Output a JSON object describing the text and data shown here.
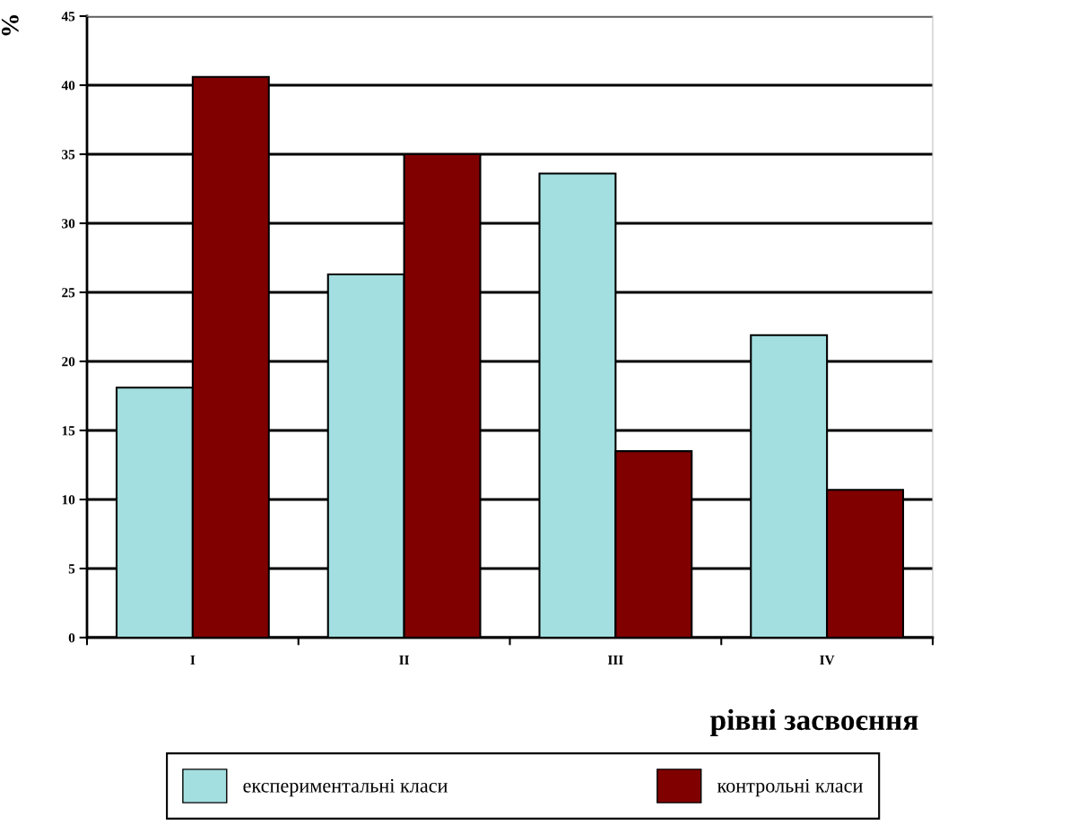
{
  "chart_data": {
    "type": "bar",
    "xlabel": "рівні засвоєння",
    "ylabel": "%",
    "categories": [
      "I",
      "II",
      "III",
      "IV"
    ],
    "series": [
      {
        "name": "експериментальні класи",
        "color": "#a3dfe0",
        "values": [
          18.1,
          26.3,
          33.6,
          21.9
        ]
      },
      {
        "name": "контрольні класи",
        "color": "#800000",
        "values": [
          40.6,
          35.0,
          13.5,
          10.7
        ]
      }
    ],
    "ylim": [
      0,
      45
    ],
    "yticks": [
      0,
      5,
      10,
      15,
      20,
      25,
      30,
      35,
      40,
      45
    ],
    "grid": "y",
    "legend": "bottom"
  }
}
